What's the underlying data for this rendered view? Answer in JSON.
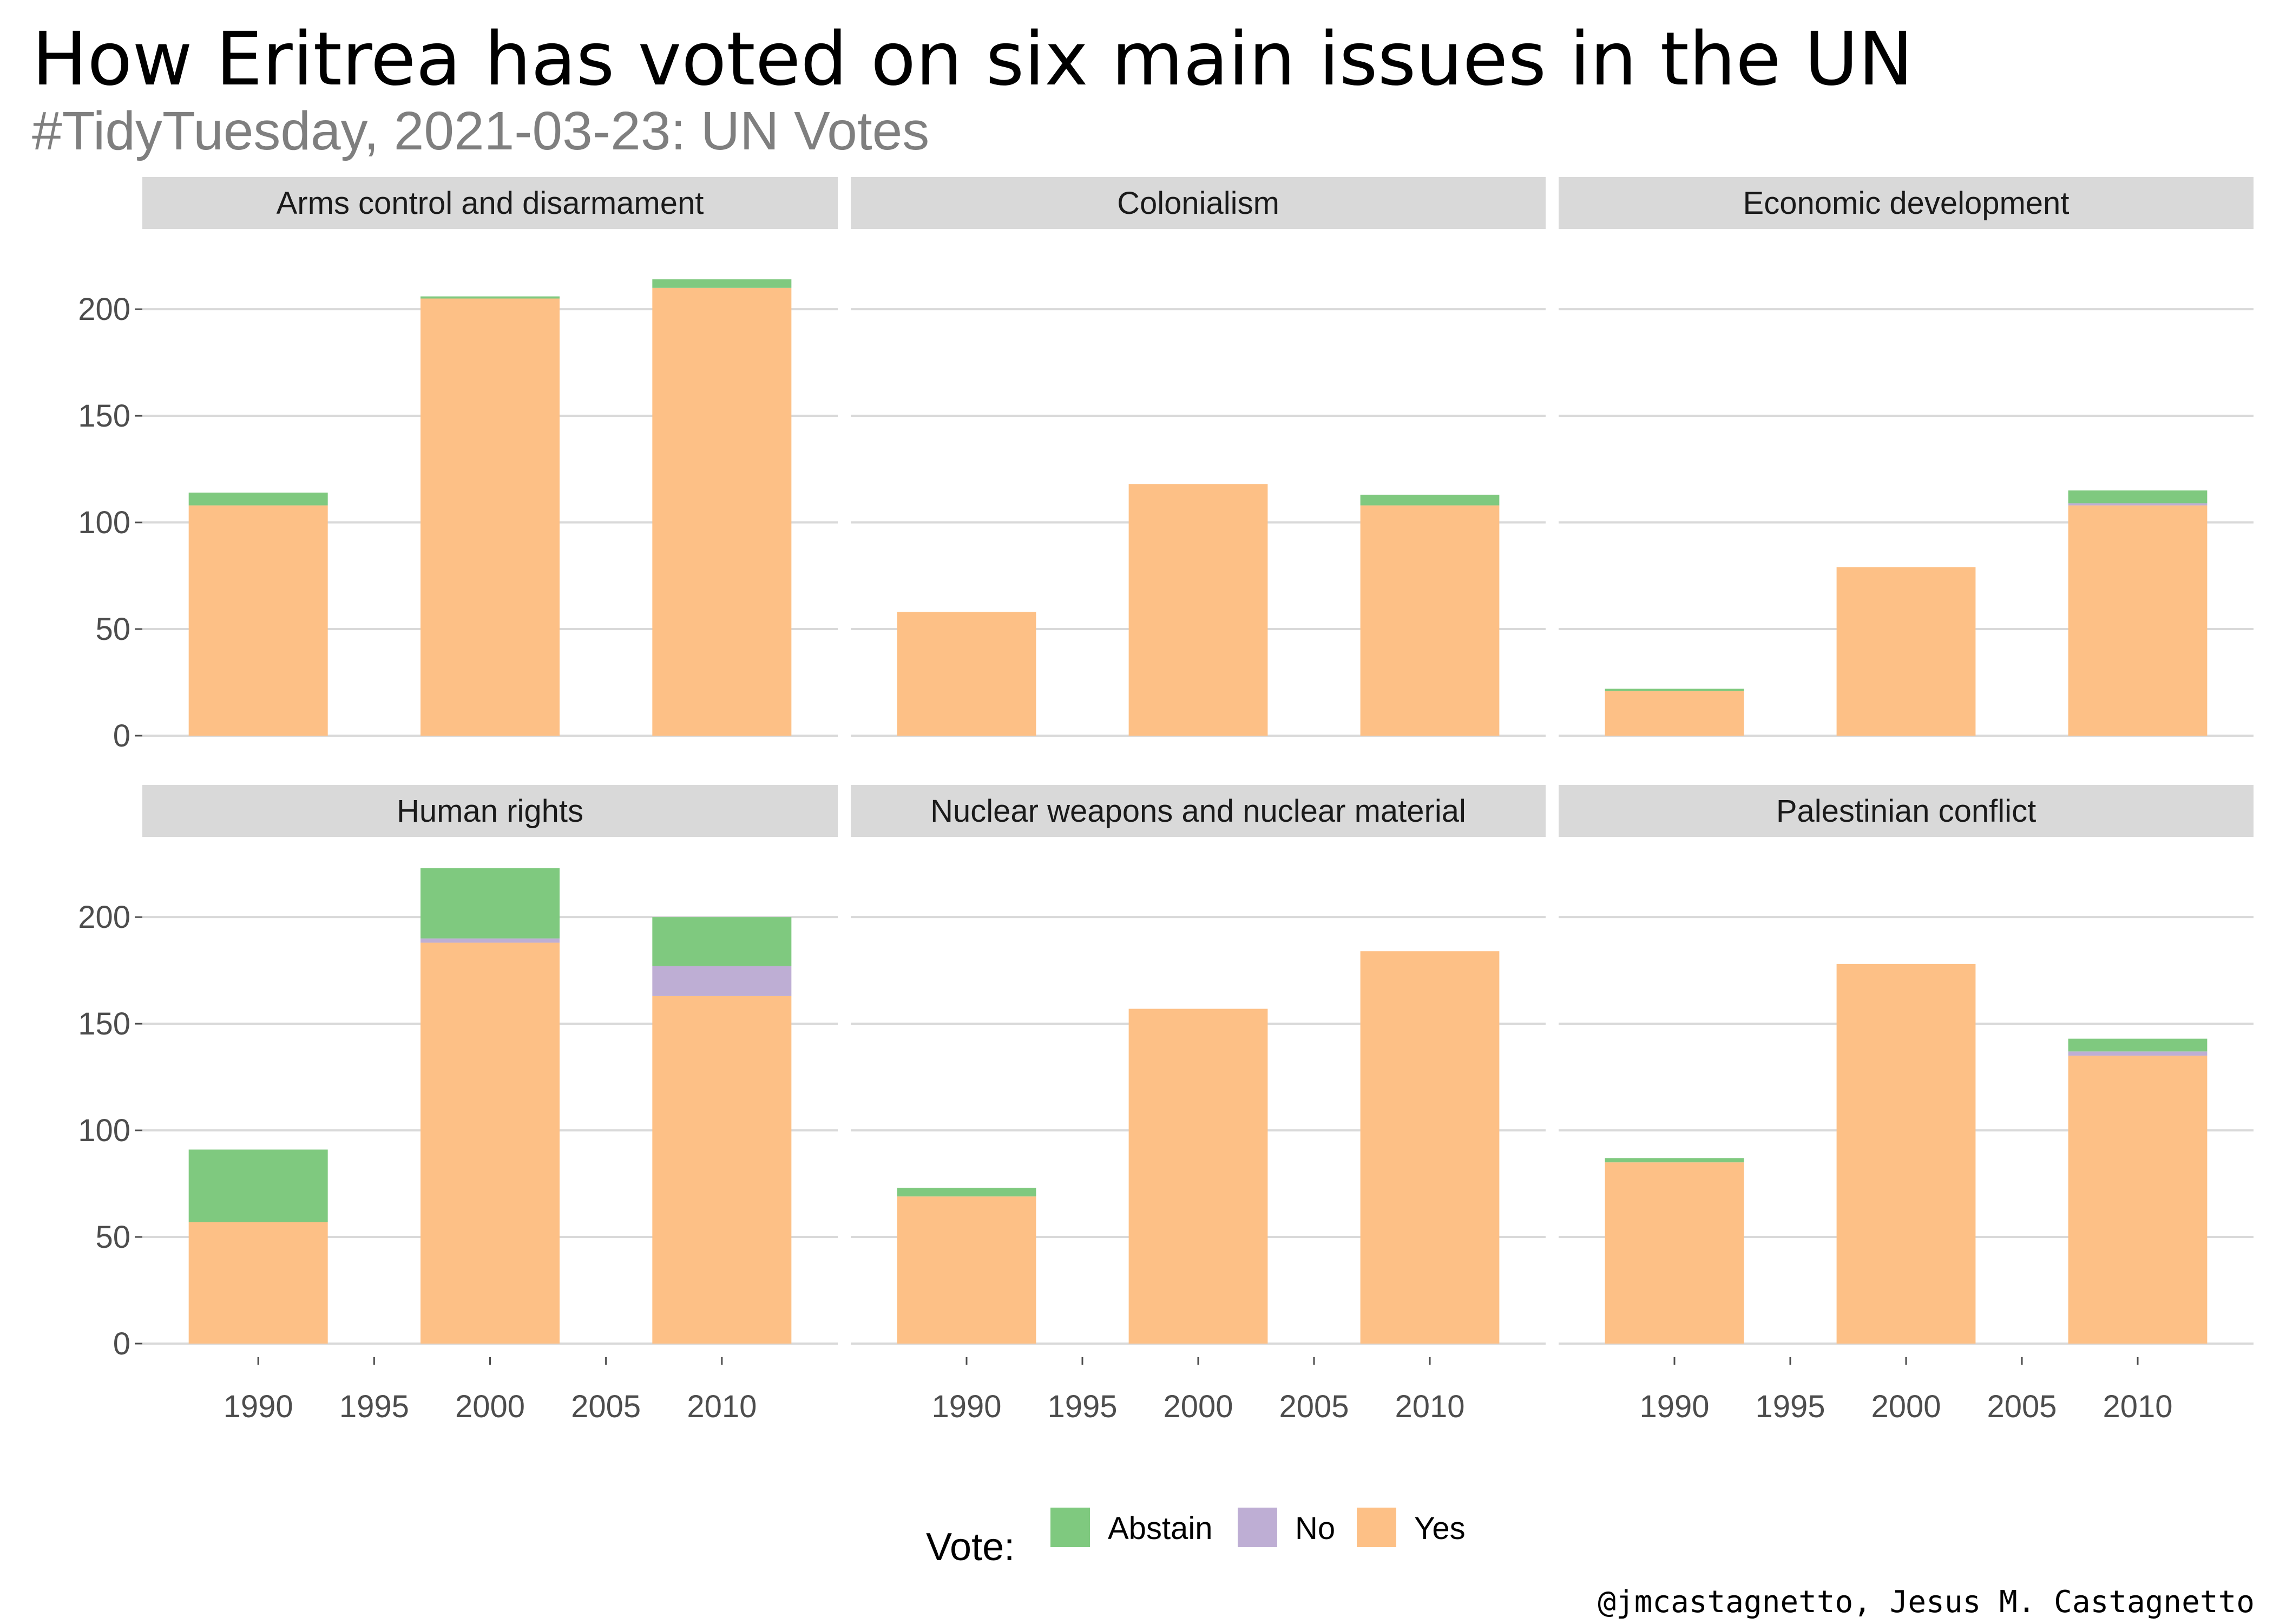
{
  "title": "How Eritrea has voted on six main issues in the UN",
  "subtitle": "#TidyTuesday, 2021-03-23: UN Votes",
  "caption": "@jmcastagnetto, Jesus M. Castagnetto",
  "legend": {
    "title": "Vote:",
    "placement": "bottom",
    "items": [
      {
        "label": "Abstain",
        "color": "#7fc97f"
      },
      {
        "label": "No",
        "color": "#beaed4"
      },
      {
        "label": "Yes",
        "color": "#fdc086"
      }
    ]
  },
  "chart_data": {
    "type": "bar",
    "stacked": true,
    "faceted": true,
    "x_ticks": [
      1990,
      1995,
      2000,
      2005,
      2010
    ],
    "y_ticks": [
      0,
      50,
      100,
      150,
      200
    ],
    "xlim": [
      1985,
      2015
    ],
    "ylim": [
      0,
      230
    ],
    "grid": "horizontal major",
    "stack_order": [
      "Yes",
      "No",
      "Abstain"
    ],
    "colors": {
      "Abstain": "#7fc97f",
      "No": "#beaed4",
      "Yes": "#fdc086"
    },
    "panels": [
      {
        "issue": "Arms control and disarmament",
        "bars": [
          {
            "x": 1990,
            "Yes": 108,
            "No": 0,
            "Abstain": 6
          },
          {
            "x": 2000,
            "Yes": 205,
            "No": 0,
            "Abstain": 1
          },
          {
            "x": 2010,
            "Yes": 210,
            "No": 0,
            "Abstain": 4
          }
        ]
      },
      {
        "issue": "Colonialism",
        "bars": [
          {
            "x": 1990,
            "Yes": 58,
            "No": 0,
            "Abstain": 0
          },
          {
            "x": 2000,
            "Yes": 118,
            "No": 0,
            "Abstain": 0
          },
          {
            "x": 2010,
            "Yes": 108,
            "No": 0,
            "Abstain": 5
          }
        ]
      },
      {
        "issue": "Economic development",
        "bars": [
          {
            "x": 1990,
            "Yes": 21,
            "No": 0,
            "Abstain": 1
          },
          {
            "x": 2000,
            "Yes": 79,
            "No": 0,
            "Abstain": 0
          },
          {
            "x": 2010,
            "Yes": 108,
            "No": 1,
            "Abstain": 6
          }
        ]
      },
      {
        "issue": "Human rights",
        "bars": [
          {
            "x": 1990,
            "Yes": 57,
            "No": 0,
            "Abstain": 34
          },
          {
            "x": 2000,
            "Yes": 188,
            "No": 2,
            "Abstain": 33
          },
          {
            "x": 2010,
            "Yes": 163,
            "No": 14,
            "Abstain": 23
          }
        ]
      },
      {
        "issue": "Nuclear weapons and nuclear material",
        "bars": [
          {
            "x": 1990,
            "Yes": 69,
            "No": 0,
            "Abstain": 4
          },
          {
            "x": 2000,
            "Yes": 157,
            "No": 0,
            "Abstain": 0
          },
          {
            "x": 2010,
            "Yes": 184,
            "No": 0,
            "Abstain": 0
          }
        ]
      },
      {
        "issue": "Palestinian conflict",
        "bars": [
          {
            "x": 1990,
            "Yes": 85,
            "No": 0,
            "Abstain": 2
          },
          {
            "x": 2000,
            "Yes": 178,
            "No": 0,
            "Abstain": 0
          },
          {
            "x": 2010,
            "Yes": 135,
            "No": 2,
            "Abstain": 6
          }
        ]
      }
    ]
  }
}
